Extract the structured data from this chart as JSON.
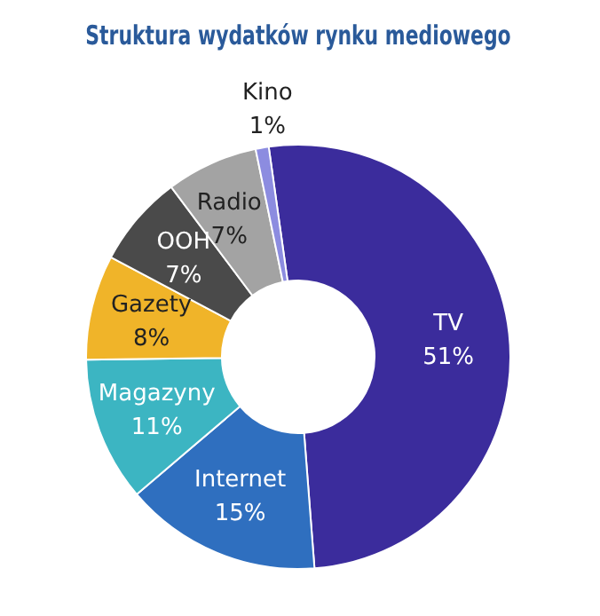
{
  "chart_data": {
    "type": "donut",
    "title": "Struktura wydatków rynku mediowego",
    "categories": [
      "TV",
      "Internet",
      "Magazyny",
      "Gazety",
      "OOH",
      "Radio",
      "Kino"
    ],
    "values": [
      51,
      15,
      11,
      8,
      7,
      7,
      1
    ],
    "value_labels": [
      "51%",
      "15%",
      "11%",
      "8%",
      "7%",
      "7%",
      "1%"
    ],
    "colors": [
      "#3b2c9c",
      "#2f6fbf",
      "#3cb5c2",
      "#f0b429",
      "#4a4a4a",
      "#a3a3a3",
      "#8c8ce0"
    ],
    "legend": false
  }
}
